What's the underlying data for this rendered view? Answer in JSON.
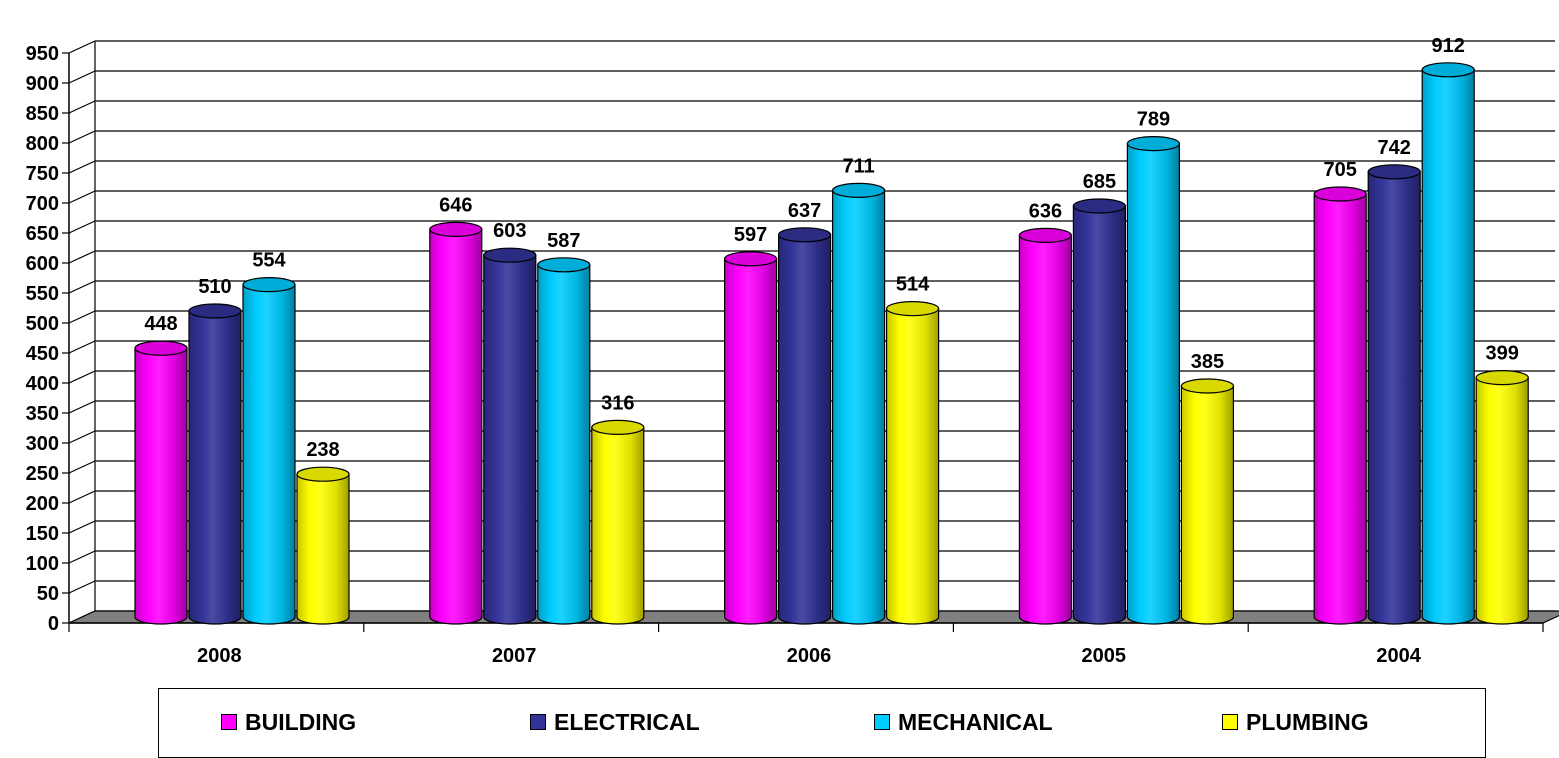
{
  "chart_data": {
    "type": "bar",
    "categories": [
      "2008",
      "2007",
      "2006",
      "2005",
      "2004"
    ],
    "series": [
      {
        "name": "BUILDING",
        "color": "#ff00ff",
        "values": [
          448,
          646,
          597,
          636,
          705
        ]
      },
      {
        "name": "ELECTRICAL",
        "color": "#333399",
        "values": [
          510,
          603,
          637,
          685,
          742
        ]
      },
      {
        "name": "MECHANICAL",
        "color": "#00ccff",
        "values": [
          554,
          587,
          711,
          789,
          912
        ]
      },
      {
        "name": "PLUMBING",
        "color": "#ffff00",
        "values": [
          238,
          316,
          514,
          385,
          399
        ]
      }
    ],
    "ylim": [
      0,
      950
    ],
    "yticks": [
      0,
      50,
      100,
      150,
      200,
      250,
      300,
      350,
      400,
      450,
      500,
      550,
      600,
      650,
      700,
      750,
      800,
      850,
      900,
      950
    ],
    "grid": true,
    "legend_position": "bottom",
    "data_labels": true,
    "style": "3d-cylinder"
  }
}
